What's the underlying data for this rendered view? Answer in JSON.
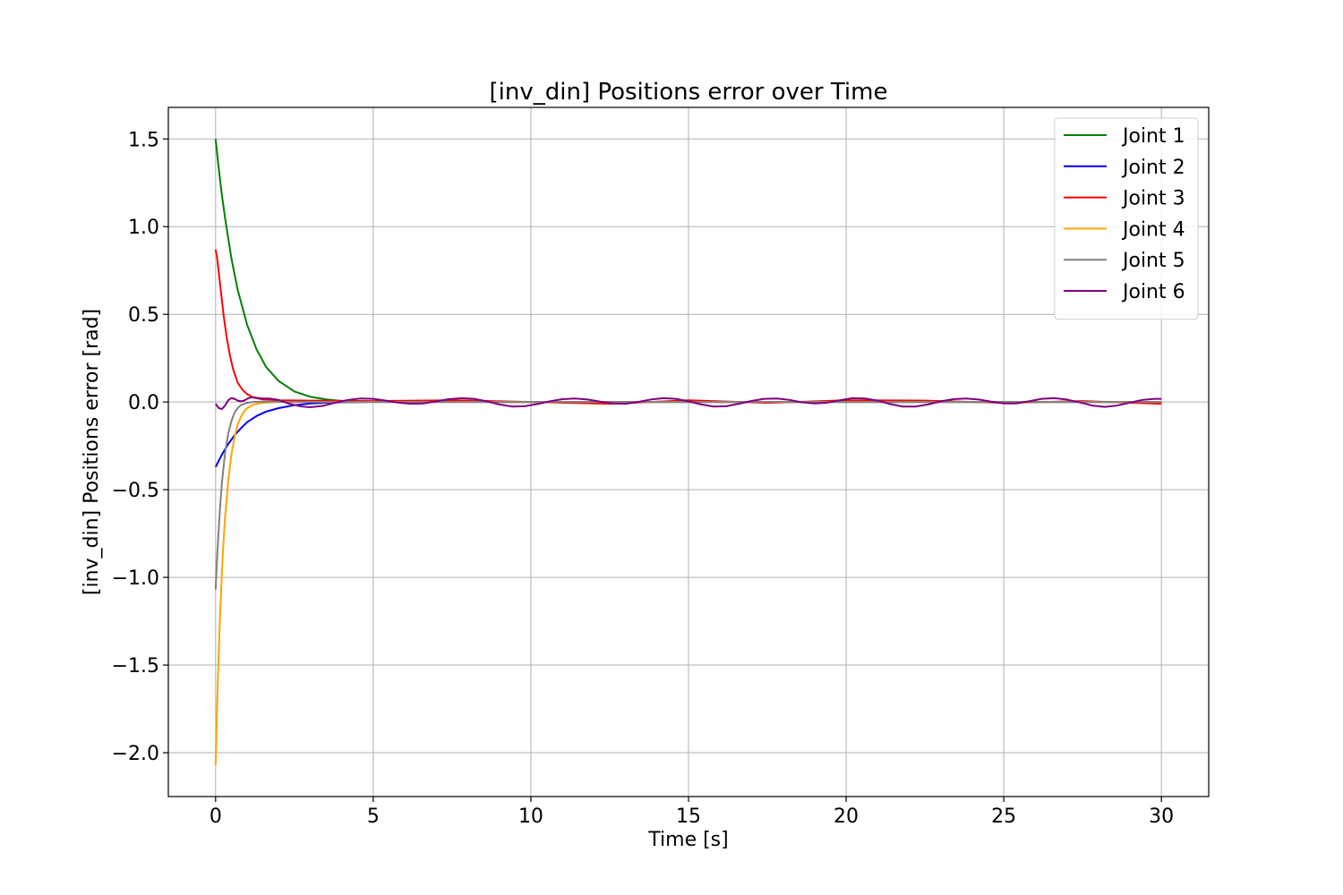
{
  "chart_data": {
    "type": "line",
    "title": "[inv_din] Positions error over Time",
    "xlabel": "Time [s]",
    "ylabel": "[inv_din] Positions error [rad]",
    "xlim": [
      -1.5,
      31.5
    ],
    "ylim": [
      -2.25,
      1.68
    ],
    "xticks": [
      0,
      5,
      10,
      15,
      20,
      25,
      30
    ],
    "yticks": [
      -2.0,
      -1.5,
      -1.0,
      -0.5,
      0.0,
      0.5,
      1.0,
      1.5
    ],
    "xtick_labels": [
      "0",
      "5",
      "10",
      "15",
      "20",
      "25",
      "30"
    ],
    "ytick_labels": [
      "−2.0",
      "−1.5",
      "−1.0",
      "−0.5",
      "0.0",
      "0.5",
      "1.0",
      "1.5"
    ],
    "grid": true,
    "legend_position": "top-right",
    "series": [
      {
        "name": "Joint 1",
        "color": "#008000",
        "x": [
          0,
          0.1,
          0.2,
          0.3,
          0.5,
          0.7,
          1.0,
          1.3,
          1.6,
          2.0,
          2.5,
          3.0,
          3.5,
          4.0,
          5,
          6,
          7,
          8,
          9,
          10,
          12,
          14,
          16,
          18,
          20,
          22,
          24,
          26,
          28,
          30
        ],
        "y": [
          1.5,
          1.33,
          1.18,
          1.05,
          0.82,
          0.64,
          0.44,
          0.3,
          0.2,
          0.12,
          0.06,
          0.03,
          0.015,
          0.006,
          0.002,
          0.001,
          0.001,
          0.001,
          0.0,
          0.0,
          0.0,
          0.0,
          0.0,
          0.0,
          0.0,
          0.0,
          0.0,
          0.0,
          0.0,
          0.0
        ]
      },
      {
        "name": "Joint 2",
        "color": "#0000ff",
        "x": [
          0,
          0.2,
          0.4,
          0.6,
          0.8,
          1.0,
          1.3,
          1.6,
          2.0,
          2.5,
          3.0,
          3.5,
          4.0,
          5,
          6,
          7,
          8,
          10,
          12,
          14,
          16,
          18,
          20,
          22,
          24,
          26,
          28,
          30
        ],
        "y": [
          -0.37,
          -0.3,
          -0.24,
          -0.19,
          -0.15,
          -0.115,
          -0.08,
          -0.055,
          -0.035,
          -0.018,
          -0.009,
          -0.004,
          -0.002,
          0.0,
          0.0,
          0.0,
          0.0,
          0.0,
          0.0,
          0.0,
          0.0,
          0.0,
          0.0,
          0.0,
          0.0,
          0.0,
          0.0,
          0.0
        ]
      },
      {
        "name": "Joint 3",
        "color": "#ff0000",
        "x": [
          0,
          0.05,
          0.15,
          0.25,
          0.35,
          0.45,
          0.55,
          0.7,
          0.85,
          1.0,
          1.2,
          1.5,
          2.0,
          3.0,
          5,
          7.5,
          10,
          12.5,
          15,
          17.5,
          20,
          22.5,
          25,
          27.5,
          30
        ],
        "y": [
          0.87,
          0.82,
          0.66,
          0.5,
          0.37,
          0.27,
          0.19,
          0.11,
          0.07,
          0.045,
          0.025,
          0.015,
          0.01,
          0.008,
          0.005,
          0.01,
          0.0,
          -0.01,
          0.01,
          -0.005,
          0.01,
          0.008,
          -0.005,
          0.005,
          -0.01
        ]
      },
      {
        "name": "Joint 4",
        "color": "#ffa500",
        "x": [
          0,
          0.05,
          0.1,
          0.15,
          0.2,
          0.25,
          0.3,
          0.4,
          0.5,
          0.6,
          0.7,
          0.8,
          0.9,
          1.0,
          1.2,
          1.5,
          2.0,
          3.0,
          5,
          8,
          12,
          16,
          20,
          24,
          28,
          30
        ],
        "y": [
          -2.07,
          -1.72,
          -1.42,
          -1.18,
          -0.97,
          -0.8,
          -0.66,
          -0.45,
          -0.3,
          -0.2,
          -0.13,
          -0.085,
          -0.055,
          -0.035,
          -0.015,
          -0.004,
          0.0,
          0.0,
          0.0,
          0.0,
          0.0,
          0.0,
          0.0,
          0.0,
          0.0,
          0.0
        ]
      },
      {
        "name": "Joint 5",
        "color": "#808080",
        "x": [
          0,
          0.05,
          0.1,
          0.15,
          0.2,
          0.3,
          0.4,
          0.5,
          0.6,
          0.7,
          0.8,
          1.0,
          1.2,
          1.5,
          2.0,
          3.0,
          5,
          8,
          12,
          16,
          20,
          24,
          28,
          30
        ],
        "y": [
          -1.07,
          -0.88,
          -0.72,
          -0.58,
          -0.46,
          -0.29,
          -0.18,
          -0.11,
          -0.06,
          -0.035,
          -0.018,
          -0.005,
          0.0,
          0.002,
          0.001,
          0.0,
          0.0,
          0.0,
          0.0,
          0.0,
          0.0,
          0.0,
          0.0,
          0.0
        ]
      },
      {
        "name": "Joint 6",
        "color": "#800080",
        "x": [
          0,
          0.1,
          0.2,
          0.3,
          0.4,
          0.5,
          0.6,
          0.7,
          0.8,
          0.9,
          1.0,
          1.1,
          1.2,
          1.3,
          1.5,
          1.7,
          2.0,
          2.3,
          2.7,
          3.0,
          3.4,
          3.8,
          4.2,
          4.6,
          5.0,
          5.4,
          5.8,
          6.2,
          6.6,
          7.0,
          7.4,
          7.8,
          8.2,
          8.6,
          9.0,
          9.4,
          9.8,
          10.2,
          10.6,
          11.0,
          11.4,
          11.8,
          12.2,
          12.6,
          13.0,
          13.4,
          13.8,
          14.2,
          14.6,
          15.0,
          15.4,
          15.8,
          16.2,
          16.6,
          17.0,
          17.4,
          17.8,
          18.2,
          18.6,
          19.0,
          19.4,
          19.8,
          20.2,
          20.6,
          21.0,
          21.4,
          21.8,
          22.2,
          22.6,
          23.0,
          23.4,
          23.8,
          24.2,
          24.6,
          25.0,
          25.4,
          25.8,
          26.2,
          26.6,
          27.0,
          27.4,
          27.8,
          28.2,
          28.6,
          29.0,
          29.4,
          29.8,
          30.0
        ],
        "y": [
          -0.01,
          -0.035,
          -0.04,
          -0.02,
          0.01,
          0.022,
          0.018,
          0.008,
          0.004,
          0.008,
          0.018,
          0.025,
          0.027,
          0.024,
          0.02,
          0.02,
          0.012,
          -0.008,
          -0.025,
          -0.03,
          -0.022,
          -0.004,
          0.012,
          0.02,
          0.018,
          0.008,
          -0.004,
          -0.01,
          -0.008,
          0.004,
          0.016,
          0.022,
          0.018,
          0.004,
          -0.014,
          -0.026,
          -0.024,
          -0.012,
          0.004,
          0.016,
          0.02,
          0.014,
          0.002,
          -0.008,
          -0.01,
          0.0,
          0.014,
          0.022,
          0.018,
          0.004,
          -0.014,
          -0.026,
          -0.024,
          -0.01,
          0.006,
          0.018,
          0.02,
          0.012,
          -0.002,
          -0.008,
          -0.004,
          0.01,
          0.022,
          0.02,
          0.008,
          -0.012,
          -0.026,
          -0.026,
          -0.014,
          0.004,
          0.016,
          0.02,
          0.014,
          0.002,
          -0.008,
          -0.008,
          0.004,
          0.018,
          0.022,
          0.014,
          -0.002,
          -0.02,
          -0.028,
          -0.02,
          -0.004,
          0.012,
          0.018,
          0.018
        ]
      }
    ]
  }
}
